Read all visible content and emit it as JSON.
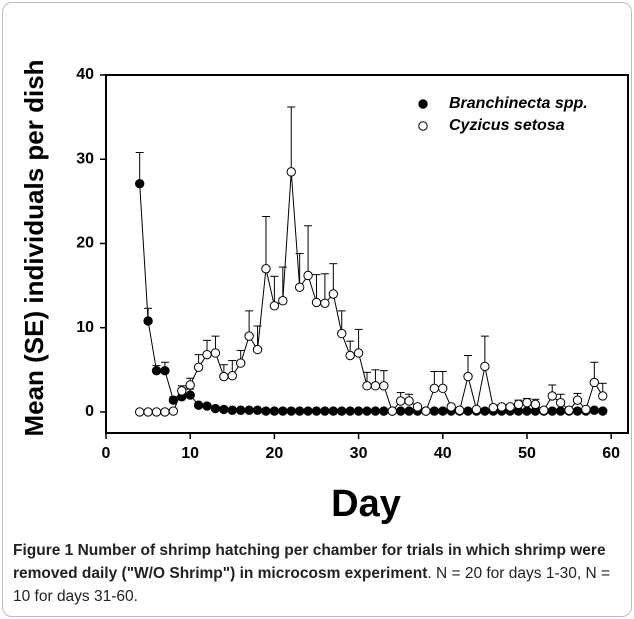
{
  "chart_data": {
    "type": "scatter-line",
    "x_label": "Day",
    "y_label": "Mean (SE) individuals per dish",
    "xlim": [
      0,
      62
    ],
    "ylim": [
      -2.5,
      40
    ],
    "xticks": [
      0,
      10,
      20,
      30,
      40,
      50,
      60
    ],
    "yticks": [
      0,
      10,
      20,
      30,
      40
    ],
    "legend": "upper right",
    "x": [
      4,
      5,
      6,
      7,
      8,
      9,
      10,
      11,
      12,
      13,
      14,
      15,
      16,
      17,
      18,
      19,
      20,
      21,
      22,
      23,
      24,
      25,
      26,
      27,
      28,
      29,
      30,
      31,
      32,
      33,
      34,
      35,
      36,
      37,
      38,
      39,
      40,
      41,
      42,
      43,
      44,
      45,
      46,
      47,
      48,
      49,
      50,
      51,
      52,
      53,
      54,
      55,
      56,
      57,
      58,
      59
    ],
    "series": [
      {
        "name": "Branchinecta spp.",
        "color": "#000000",
        "values": [
          27.1,
          10.8,
          4.9,
          4.9,
          1.4,
          1.8,
          2.0,
          0.8,
          0.7,
          0.4,
          0.3,
          0.2,
          0.2,
          0.2,
          0.2,
          0.1,
          0.1,
          0.1,
          0.1,
          0.1,
          0.1,
          0.1,
          0.1,
          0.1,
          0.1,
          0.1,
          0.1,
          0.1,
          0.1,
          0.1,
          0.1,
          0.1,
          0.1,
          0.1,
          0.1,
          0.1,
          0.1,
          0.1,
          0.1,
          0.1,
          0.1,
          0.1,
          0.1,
          0.1,
          0.1,
          0.1,
          0.1,
          0.1,
          0.1,
          0.1,
          0.1,
          0.1,
          0.1,
          0.1,
          0.2,
          0.1
        ],
        "errors": [
          3.7,
          1.5,
          0.6,
          1.0,
          0.4,
          0.5,
          0.7,
          0.2,
          0.1,
          0.1,
          0,
          0,
          0,
          0,
          0,
          0,
          0,
          0,
          0,
          0,
          0,
          0,
          0,
          0,
          0,
          0,
          0,
          0,
          0,
          0,
          0,
          0,
          0,
          0,
          0,
          0,
          0,
          0,
          0,
          0,
          0,
          0,
          0,
          0,
          0,
          0,
          0,
          0,
          0,
          0,
          0,
          0,
          0,
          0,
          0,
          0
        ]
      },
      {
        "name": "Cyzicus setosa",
        "color": "#ffffff",
        "values": [
          0,
          0,
          0,
          0,
          0.1,
          2.5,
          3.2,
          5.3,
          6.8,
          7.0,
          4.2,
          4.3,
          5.8,
          9.0,
          7.4,
          17.0,
          12.6,
          13.2,
          28.5,
          14.8,
          16.2,
          13.0,
          12.9,
          14.0,
          9.3,
          6.7,
          7.0,
          3.1,
          3.1,
          3.1,
          0.1,
          1.3,
          1.3,
          0.6,
          0.1,
          2.8,
          2.8,
          0.6,
          0.2,
          4.2,
          0.3,
          5.4,
          0.5,
          0.6,
          0.6,
          0.9,
          1.1,
          0.9,
          0.2,
          1.9,
          1.1,
          0.2,
          1.4,
          0.3,
          3.5,
          1.9
        ],
        "errors": [
          0,
          0,
          0,
          0,
          0,
          0.6,
          0.8,
          1.5,
          1.7,
          2.0,
          1.4,
          1.8,
          1.5,
          3.0,
          2.8,
          6.2,
          3.5,
          4.0,
          7.7,
          4.0,
          5.9,
          3.3,
          3.5,
          3.6,
          2.7,
          1.7,
          2.8,
          1.6,
          1.9,
          1.8,
          0,
          1.0,
          0.8,
          0.3,
          0,
          2.0,
          2.0,
          0.3,
          0,
          2.5,
          0,
          3.6,
          0.3,
          0.3,
          0.3,
          0.5,
          0.5,
          0.6,
          0,
          1.3,
          1.0,
          0,
          0.8,
          0,
          2.4,
          1.5
        ]
      }
    ]
  },
  "caption": {
    "label": "Figure 1",
    "title": "Number of shrimp hatching per chamber for trials in which shrimp were removed daily (\"W/O Shrimp\") in microcosm experiment",
    "text": ". N = 20 for days 1-30, N = 10 for days 31-60."
  }
}
